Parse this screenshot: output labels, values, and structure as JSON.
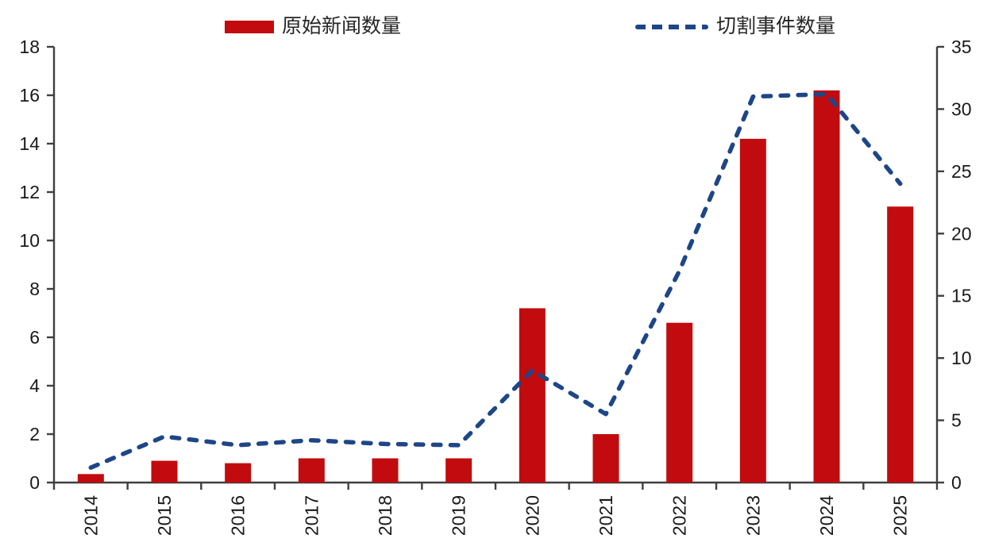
{
  "page": {
    "background": "#ffffff"
  },
  "legend": {
    "position": "top",
    "items": [
      {
        "label": "原始新闻数量",
        "marker": "bar-swatch",
        "color": "#c20b0e"
      },
      {
        "label": "切割事件数量",
        "marker": "dashed-line-swatch",
        "color": "#1e4687"
      }
    ]
  },
  "chart_data": {
    "type": "bar",
    "subtype": "bar-line-combo-dual-axis",
    "title": "",
    "categories": [
      "2014",
      "2015",
      "2016",
      "2017",
      "2018",
      "2019",
      "2020",
      "2021",
      "2022",
      "2023",
      "2024",
      "2025"
    ],
    "series": [
      {
        "name": "原始新闻数量",
        "type": "bar",
        "yaxis": "left",
        "color": "#c20b0e",
        "values": [
          0.35,
          0.9,
          0.8,
          1.0,
          1.0,
          1.0,
          7.2,
          2.0,
          6.6,
          14.2,
          16.2,
          11.4
        ]
      },
      {
        "name": "切割事件数量",
        "type": "line",
        "line_style": "dashed",
        "yaxis": "right",
        "color": "#1e4687",
        "values": [
          1.2,
          3.7,
          3.0,
          3.4,
          3.1,
          3.0,
          9.0,
          5.5,
          17.0,
          31.0,
          31.2,
          24.0
        ]
      }
    ],
    "left_axis": {
      "min": 0,
      "max": 18,
      "step": 2,
      "tick_labels": [
        "0",
        "2",
        "4",
        "6",
        "8",
        "10",
        "12",
        "14",
        "16",
        "18"
      ]
    },
    "right_axis": {
      "min": 0,
      "max": 35,
      "step": 5,
      "tick_labels": [
        "0",
        "5",
        "10",
        "15",
        "20",
        "25",
        "30",
        "35"
      ]
    },
    "x_axis": {
      "tick_labels": [
        "2014",
        "2015",
        "2016",
        "2017",
        "2018",
        "2019",
        "2020",
        "2021",
        "2022",
        "2023",
        "2024",
        "2025"
      ],
      "label_rotation_deg": -90
    },
    "grid": false,
    "legend_position": "top",
    "axis_color": "#3f3f3f",
    "tick_text_color": "#1a1a1a"
  }
}
